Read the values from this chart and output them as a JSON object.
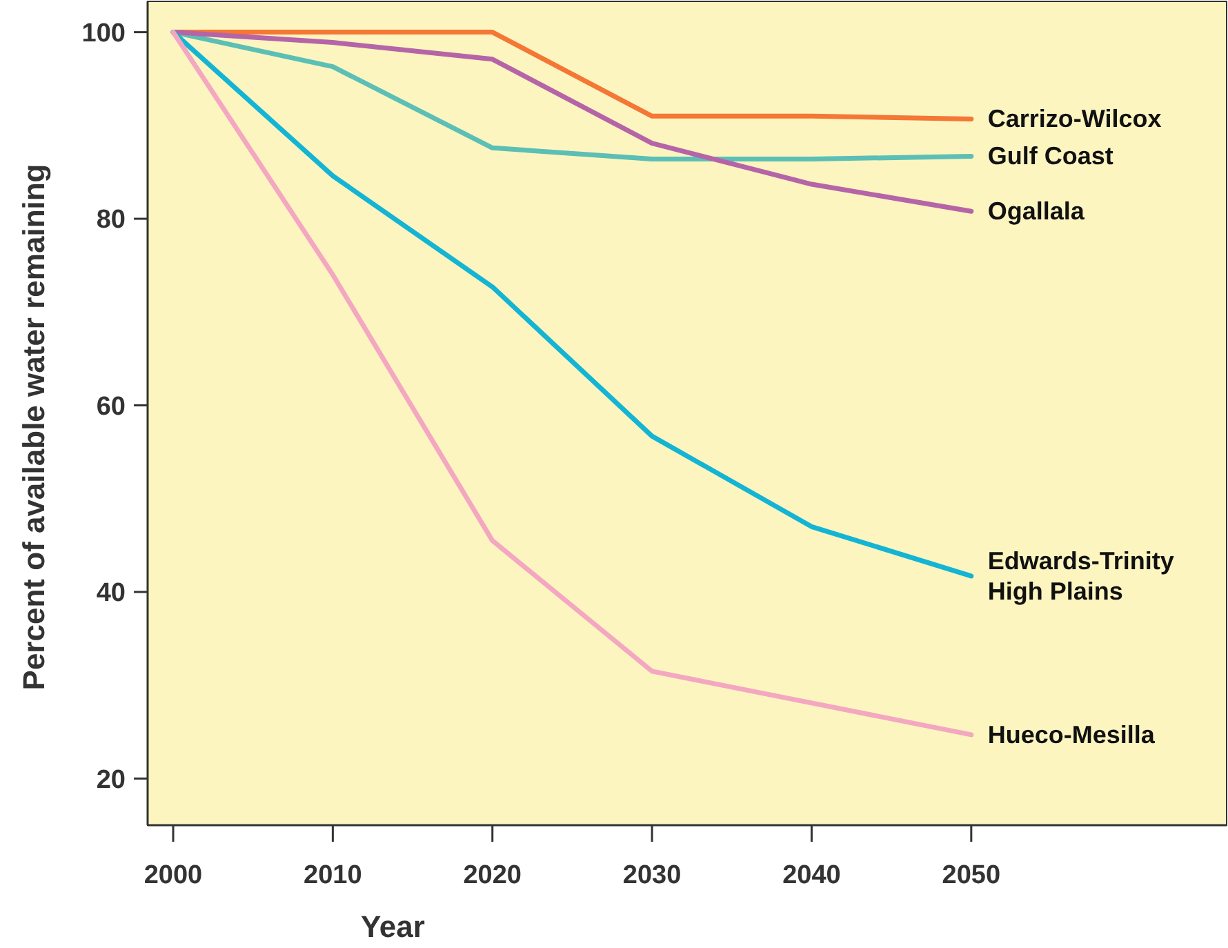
{
  "chart_data": {
    "type": "line",
    "xlabel": "Year",
    "ylabel": "Percent of available water remaining",
    "x": [
      2000,
      2010,
      2020,
      2030,
      2040,
      2050
    ],
    "series": [
      {
        "name": "Carrizo-Wilcox",
        "color": "#f47735",
        "values": [
          100,
          100,
          100,
          91,
          91,
          90.7
        ]
      },
      {
        "name": "Gulf Coast",
        "color": "#5bbfb5",
        "values": [
          100,
          96.3,
          87.6,
          86.4,
          86.4,
          86.7
        ]
      },
      {
        "name": "Ogallala",
        "color": "#b565a7",
        "values": [
          100,
          98.9,
          97.1,
          88.1,
          83.7,
          80.8
        ]
      },
      {
        "name": "Edwards-Trinity High Plains",
        "color": "#14b4d4",
        "values": [
          100,
          84.6,
          72.7,
          56.7,
          47,
          41.7
        ]
      },
      {
        "name": "Hueco-Mesilla",
        "color": "#f4a7c0",
        "values": [
          100,
          74,
          45.5,
          31.5,
          28.1,
          24.7
        ]
      }
    ],
    "xlim": [
      1998.4,
      2066
    ],
    "ylim": [
      15,
      103.3
    ],
    "xticks": [
      2000,
      2010,
      2020,
      2030,
      2040,
      2050
    ],
    "yticks": [
      20,
      40,
      60,
      80,
      100
    ],
    "grid": false,
    "marker": "none",
    "line_style": "solid"
  }
}
